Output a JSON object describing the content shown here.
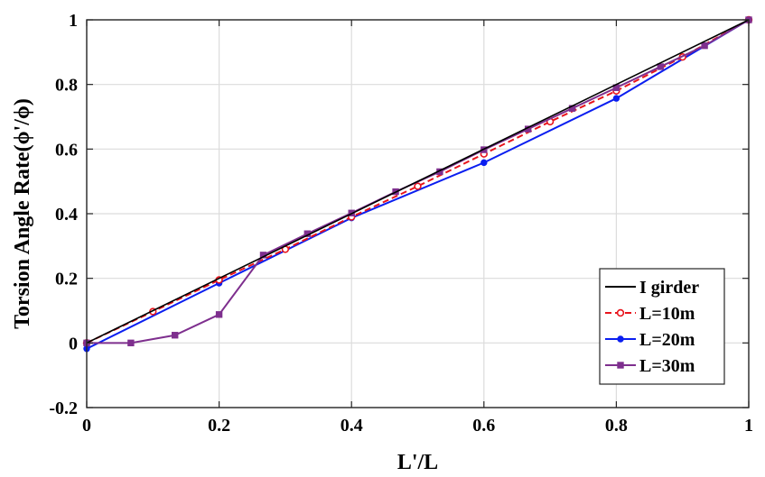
{
  "chart_data": {
    "type": "line",
    "xlabel": "L'/L",
    "ylabel": "Torsion Angle Rate(ϕ'/ϕ)",
    "xlim": [
      0,
      1
    ],
    "ylim": [
      -0.2,
      1
    ],
    "x_ticks": [
      0,
      0.2,
      0.4,
      0.6,
      0.8,
      1
    ],
    "x_tick_labels": [
      "0",
      "0.2",
      "0.4",
      "0.6",
      "0.8",
      "1"
    ],
    "y_ticks": [
      -0.2,
      0,
      0.2,
      0.4,
      0.6,
      0.8,
      1
    ],
    "y_tick_labels": [
      "-0.2",
      "0",
      "0.2",
      "0.4",
      "0.6",
      "0.8",
      "1"
    ],
    "grid": true,
    "legend_position": "bottom-right",
    "series": [
      {
        "name": "I girder",
        "color": "#000000",
        "style": "solid",
        "marker": "none",
        "x": [
          0,
          1
        ],
        "y": [
          0,
          1
        ]
      },
      {
        "name": "L=10m",
        "color": "#e8141c",
        "style": "dashed",
        "marker": "open-circle",
        "x": [
          0,
          0.1,
          0.2,
          0.3,
          0.4,
          0.5,
          0.6,
          0.7,
          0.8,
          0.9,
          1
        ],
        "y": [
          0,
          0.097,
          0.195,
          0.29,
          0.39,
          0.485,
          0.585,
          0.685,
          0.78,
          0.885,
          1
        ]
      },
      {
        "name": "L=20m",
        "color": "#0a1ef0",
        "style": "solid",
        "marker": "filled-circle",
        "x": [
          0,
          0.2,
          0.4,
          0.6,
          0.8,
          1
        ],
        "y": [
          -0.018,
          0.185,
          0.387,
          0.558,
          0.757,
          1
        ]
      },
      {
        "name": "L=30m",
        "color": "#7e2f8e",
        "style": "solid",
        "marker": "filled-square",
        "x": [
          0,
          0.0667,
          0.1333,
          0.2,
          0.2667,
          0.3333,
          0.4,
          0.4667,
          0.5333,
          0.6,
          0.6667,
          0.7333,
          0.8,
          0.8667,
          0.9333,
          1
        ],
        "y": [
          0,
          0,
          0.024,
          0.088,
          0.272,
          0.338,
          0.402,
          0.468,
          0.53,
          0.598,
          0.662,
          0.726,
          0.79,
          0.855,
          0.92,
          1
        ]
      }
    ]
  }
}
